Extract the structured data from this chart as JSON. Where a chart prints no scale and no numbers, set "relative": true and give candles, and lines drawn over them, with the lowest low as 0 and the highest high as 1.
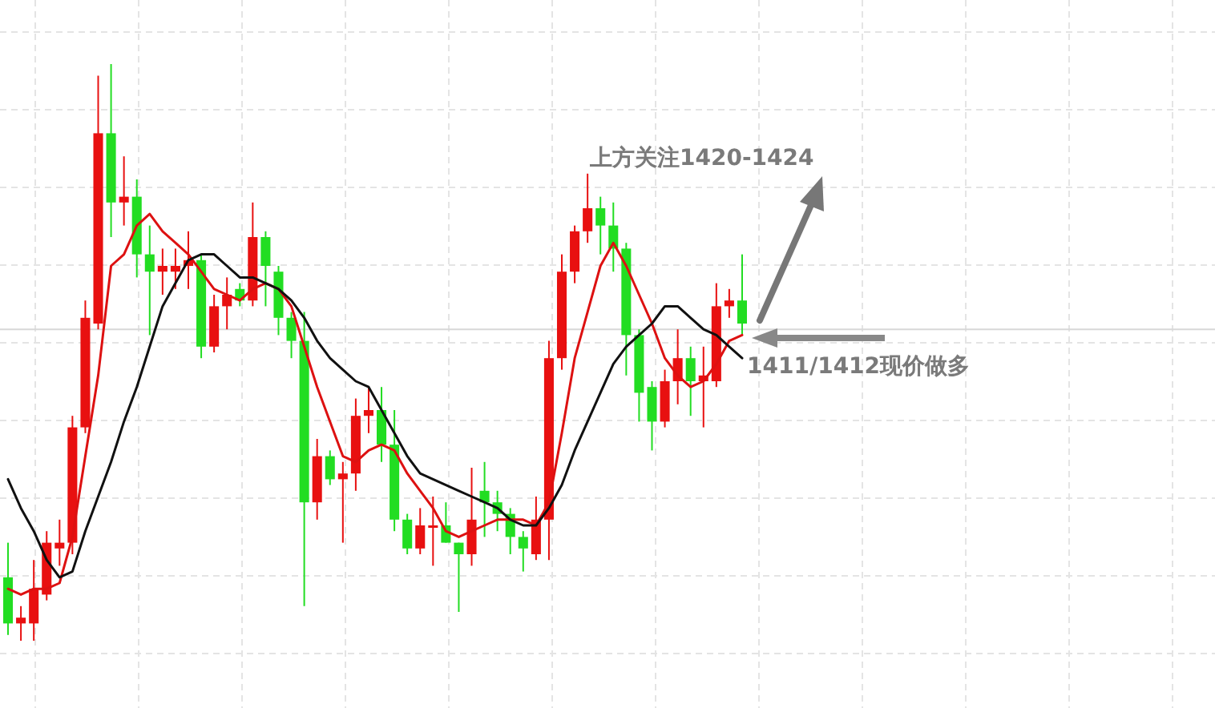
{
  "chart_data": {
    "type": "candlestick",
    "relative": true,
    "grid": true,
    "categories": [
      null,
      null,
      null,
      null,
      null,
      null,
      null,
      null,
      null,
      null,
      null,
      null,
      null,
      null,
      null,
      null,
      null,
      null,
      null,
      null,
      null,
      null,
      null,
      null,
      null,
      null,
      null,
      null,
      null,
      null,
      null,
      null,
      null,
      null,
      null,
      null,
      null,
      null,
      null,
      null,
      null,
      null,
      null,
      null,
      null,
      null,
      null,
      null,
      null,
      null,
      null,
      null,
      null,
      null,
      null,
      null,
      null,
      null
    ],
    "ohlc": [
      [
        0.11,
        0.17,
        0.01,
        0.03
      ],
      [
        0.03,
        0.06,
        0,
        0.04
      ],
      [
        0.03,
        0.14,
        0,
        0.09
      ],
      [
        0.08,
        0.19,
        0.07,
        0.17
      ],
      [
        0.16,
        0.21,
        0.13,
        0.17
      ],
      [
        0.17,
        0.39,
        0.15,
        0.37
      ],
      [
        0.37,
        0.59,
        0.36,
        0.56
      ],
      [
        0.55,
        0.98,
        0.54,
        0.88
      ],
      [
        0.88,
        1,
        0.7,
        0.76
      ],
      [
        0.76,
        0.84,
        0.72,
        0.77
      ],
      [
        0.77,
        0.8,
        0.63,
        0.67
      ],
      [
        0.67,
        0.72,
        0.53,
        0.64
      ],
      [
        0.64,
        0.68,
        0.6,
        0.65
      ],
      [
        0.64,
        0.68,
        0.61,
        0.65
      ],
      [
        0.65,
        0.71,
        0.61,
        0.66
      ],
      [
        0.66,
        0.67,
        0.49,
        0.51
      ],
      [
        0.51,
        0.6,
        0.5,
        0.58
      ],
      [
        0.58,
        0.63,
        0.54,
        0.6
      ],
      [
        0.61,
        0.62,
        0.58,
        0.59
      ],
      [
        0.59,
        0.76,
        0.58,
        0.7
      ],
      [
        0.7,
        0.71,
        0.58,
        0.65
      ],
      [
        0.64,
        0.65,
        0.53,
        0.56
      ],
      [
        0.56,
        0.57,
        0.49,
        0.52
      ],
      [
        0.52,
        0.57,
        0.06,
        0.24
      ],
      [
        0.24,
        0.35,
        0.21,
        0.32
      ],
      [
        0.32,
        0.33,
        0.27,
        0.28
      ],
      [
        0.28,
        0.31,
        0.17,
        0.29
      ],
      [
        0.29,
        0.42,
        0.26,
        0.39
      ],
      [
        0.39,
        0.44,
        0.36,
        0.4
      ],
      [
        0.4,
        0.44,
        0.31,
        0.34
      ],
      [
        0.34,
        0.4,
        0.19,
        0.21
      ],
      [
        0.21,
        0.22,
        0.15,
        0.16
      ],
      [
        0.16,
        0.23,
        0.15,
        0.2
      ],
      [
        0.2,
        0.25,
        0.13,
        0.2
      ],
      [
        0.2,
        0.24,
        0.17,
        0.17
      ],
      [
        0.17,
        0.17,
        0.05,
        0.15
      ],
      [
        0.15,
        0.3,
        0.13,
        0.21
      ],
      [
        0.26,
        0.31,
        0.18,
        0.24
      ],
      [
        0.24,
        0.26,
        0.19,
        0.22
      ],
      [
        0.22,
        0.23,
        0.15,
        0.18
      ],
      [
        0.18,
        0.19,
        0.12,
        0.16
      ],
      [
        0.15,
        0.25,
        0.14,
        0.21
      ],
      [
        0.21,
        0.52,
        0.14,
        0.49
      ],
      [
        0.49,
        0.67,
        0.47,
        0.64
      ],
      [
        0.64,
        0.72,
        0.62,
        0.71
      ],
      [
        0.71,
        0.81,
        0.69,
        0.75
      ],
      [
        0.75,
        0.77,
        0.67,
        0.72
      ],
      [
        0.72,
        0.76,
        0.64,
        0.68
      ],
      [
        0.68,
        0.69,
        0.46,
        0.53
      ],
      [
        0.53,
        0.54,
        0.38,
        0.43
      ],
      [
        0.44,
        0.45,
        0.33,
        0.38
      ],
      [
        0.38,
        0.47,
        0.37,
        0.45
      ],
      [
        0.45,
        0.54,
        0.41,
        0.49
      ],
      [
        0.49,
        0.51,
        0.39,
        0.45
      ],
      [
        0.45,
        0.51,
        0.37,
        0.46
      ],
      [
        0.45,
        0.62,
        0.44,
        0.58
      ],
      [
        0.58,
        0.61,
        0.56,
        0.59
      ],
      [
        0.59,
        0.67,
        0.53,
        0.55
      ]
    ],
    "colors": [
      "#22dd22",
      "#e81010",
      "#e81010",
      "#e81010",
      "#e81010",
      "#e81010",
      "#e81010",
      "#e81010",
      "#22dd22",
      "#e81010",
      "#22dd22",
      "#22dd22",
      "#e81010",
      "#e81010",
      "#e81010",
      "#22dd22",
      "#e81010",
      "#e81010",
      "#22dd22",
      "#e81010",
      "#22dd22",
      "#22dd22",
      "#22dd22",
      "#22dd22",
      "#e81010",
      "#22dd22",
      "#e81010",
      "#e81010",
      "#e81010",
      "#22dd22",
      "#22dd22",
      "#22dd22",
      "#e81010",
      "#e81010",
      "#22dd22",
      "#22dd22",
      "#e81010",
      "#22dd22",
      "#22dd22",
      "#22dd22",
      "#22dd22",
      "#e81010",
      "#e81010",
      "#e81010",
      "#e81010",
      "#e81010",
      "#22dd22",
      "#22dd22",
      "#22dd22",
      "#22dd22",
      "#22dd22",
      "#e81010",
      "#e81010",
      "#22dd22",
      "#e81010",
      "#e81010",
      "#e81010",
      "#22dd22"
    ],
    "series": [
      {
        "type": "line",
        "color": "#dd1111",
        "values": [
          0.09,
          0.08,
          0.09,
          0.09,
          0.1,
          0.18,
          0.32,
          0.46,
          0.65,
          0.67,
          0.72,
          0.74,
          0.71,
          0.69,
          0.67,
          0.64,
          0.61,
          0.6,
          0.59,
          0.61,
          0.62,
          0.61,
          0.58,
          0.51,
          0.44,
          0.38,
          0.32,
          0.31,
          0.33,
          0.34,
          0.33,
          0.29,
          0.26,
          0.23,
          0.19,
          0.18,
          0.19,
          0.2,
          0.21,
          0.21,
          0.21,
          0.2,
          0.24,
          0.36,
          0.49,
          0.57,
          0.65,
          0.69,
          0.65,
          0.6,
          0.55,
          0.49,
          0.46,
          0.44,
          0.45,
          0.48,
          0.52,
          0.53
        ]
      },
      {
        "type": "line",
        "color": "#111111",
        "values": [
          0.28,
          0.23,
          0.19,
          0.14,
          0.11,
          0.12,
          0.19,
          0.25,
          0.31,
          0.38,
          0.44,
          0.51,
          0.58,
          0.62,
          0.66,
          0.67,
          0.67,
          0.65,
          0.63,
          0.63,
          0.62,
          0.61,
          0.59,
          0.56,
          0.52,
          0.49,
          0.47,
          0.45,
          0.44,
          0.4,
          0.36,
          0.32,
          0.29,
          0.28,
          0.27,
          0.26,
          0.25,
          0.24,
          0.23,
          0.21,
          0.2,
          0.2,
          0.23,
          0.27,
          0.33,
          0.38,
          0.43,
          0.48,
          0.51,
          0.53,
          0.55,
          0.58,
          0.58,
          0.56,
          0.54,
          0.53,
          0.51,
          0.49
        ]
      }
    ],
    "ref_lines": [
      {
        "axis": "y",
        "value": 0.54,
        "color": "#d8d8d8"
      }
    ],
    "annotations": [
      "上方关注1420-1424",
      "1411/1412现价做多"
    ]
  }
}
